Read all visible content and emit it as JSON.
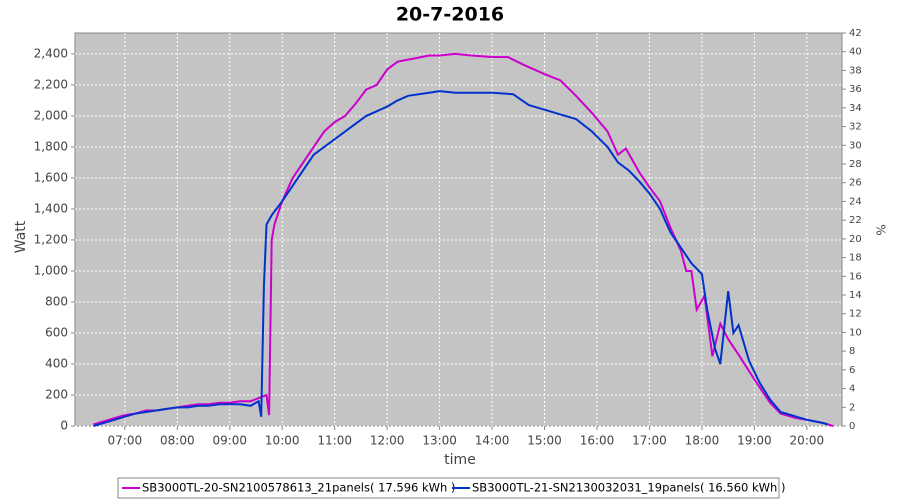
{
  "chart_data": {
    "type": "line",
    "title": "20-7-2016",
    "xlabel": "time",
    "ylabel": "Watt",
    "y2label": "%",
    "xlim": [
      6.05,
      20.67
    ],
    "xticks": [
      {
        "value": 7,
        "label": "07:00"
      },
      {
        "value": 8,
        "label": "08:00"
      },
      {
        "value": 9,
        "label": "09:00"
      },
      {
        "value": 10,
        "label": "10:00"
      },
      {
        "value": 11,
        "label": "11:00"
      },
      {
        "value": 12,
        "label": "12:00"
      },
      {
        "value": 13,
        "label": "13:00"
      },
      {
        "value": 14,
        "label": "14:00"
      },
      {
        "value": 15,
        "label": "15:00"
      },
      {
        "value": 16,
        "label": "16:00"
      },
      {
        "value": 17,
        "label": "17:00"
      },
      {
        "value": 18,
        "label": "18:00"
      },
      {
        "value": 19,
        "label": "19:00"
      },
      {
        "value": 20,
        "label": "20:00"
      }
    ],
    "ylim": [
      0,
      2535
    ],
    "yticks": [
      0,
      200,
      400,
      600,
      800,
      {
        "value": 1000,
        "label": "1,000"
      },
      {
        "value": 1200,
        "label": "1,200"
      },
      {
        "value": 1400,
        "label": "1,400"
      },
      {
        "value": 1600,
        "label": "1,600"
      },
      {
        "value": 1800,
        "label": "1,800"
      },
      {
        "value": 2000,
        "label": "2,000"
      },
      {
        "value": 2200,
        "label": "2,200"
      },
      {
        "value": 2400,
        "label": "2,400"
      }
    ],
    "y2lim": [
      0,
      42
    ],
    "y2ticks": [
      0,
      2,
      4,
      6,
      8,
      10,
      12,
      14,
      16,
      18,
      20,
      22,
      24,
      26,
      28,
      30,
      32,
      34,
      36,
      38,
      40,
      42
    ],
    "grid": true,
    "series": [
      {
        "name": "SB3000TL-20-SN2100578613_21panels( 17.596 kWh )",
        "color": "#cc00cc",
        "x": [
          6.4,
          6.6,
          6.8,
          7.0,
          7.2,
          7.4,
          7.6,
          7.8,
          8.0,
          8.2,
          8.4,
          8.6,
          8.8,
          9.0,
          9.2,
          9.4,
          9.55,
          9.7,
          9.75,
          9.8,
          9.85,
          10.0,
          10.2,
          10.4,
          10.6,
          10.8,
          11.0,
          11.2,
          11.4,
          11.6,
          11.8,
          12.0,
          12.2,
          12.5,
          12.8,
          13.0,
          13.3,
          13.6,
          14.0,
          14.3,
          14.6,
          15.0,
          15.3,
          15.6,
          15.9,
          16.2,
          16.4,
          16.55,
          16.8,
          17.0,
          17.2,
          17.4,
          17.6,
          17.7,
          17.8,
          17.9,
          18.05,
          18.2,
          18.35,
          18.5,
          18.7,
          19.0,
          19.3,
          19.5,
          19.8,
          20.0,
          20.3,
          20.5
        ],
        "values": [
          10,
          30,
          50,
          70,
          80,
          100,
          100,
          110,
          120,
          130,
          140,
          140,
          150,
          150,
          160,
          160,
          180,
          200,
          70,
          1200,
          1300,
          1450,
          1600,
          1700,
          1800,
          1900,
          1960,
          2000,
          2080,
          2170,
          2200,
          2300,
          2350,
          2370,
          2390,
          2390,
          2400,
          2390,
          2380,
          2380,
          2330,
          2270,
          2230,
          2130,
          2020,
          1900,
          1750,
          1790,
          1640,
          1540,
          1450,
          1280,
          1130,
          1000,
          1000,
          750,
          840,
          450,
          660,
          560,
          460,
          300,
          150,
          80,
          50,
          40,
          20,
          0
        ]
      },
      {
        "name": "SB3000TL-21-SN2130032031_19panels( 16.560 kWh )",
        "color": "#0033cc",
        "x": [
          6.4,
          6.6,
          6.8,
          7.0,
          7.2,
          7.4,
          7.6,
          7.8,
          8.0,
          8.2,
          8.4,
          8.6,
          8.8,
          9.0,
          9.2,
          9.4,
          9.55,
          9.6,
          9.65,
          9.7,
          9.8,
          10.0,
          10.2,
          10.4,
          10.6,
          10.8,
          11.0,
          11.2,
          11.4,
          11.6,
          11.8,
          12.0,
          12.2,
          12.4,
          12.8,
          13.0,
          13.3,
          13.6,
          14.0,
          14.4,
          14.7,
          15.0,
          15.3,
          15.6,
          15.9,
          16.2,
          16.4,
          16.6,
          16.8,
          17.0,
          17.2,
          17.4,
          17.6,
          17.8,
          18.0,
          18.1,
          18.25,
          18.35,
          18.5,
          18.6,
          18.7,
          18.9,
          19.1,
          19.3,
          19.5,
          19.7,
          20.0,
          20.3,
          20.4
        ],
        "values": [
          0,
          20,
          40,
          60,
          80,
          90,
          100,
          110,
          120,
          120,
          130,
          130,
          140,
          140,
          140,
          130,
          160,
          60,
          900,
          1300,
          1360,
          1450,
          1550,
          1650,
          1750,
          1800,
          1850,
          1900,
          1950,
          2000,
          2030,
          2060,
          2100,
          2130,
          2150,
          2160,
          2150,
          2150,
          2150,
          2140,
          2070,
          2040,
          2010,
          1980,
          1900,
          1800,
          1700,
          1650,
          1580,
          1500,
          1400,
          1250,
          1150,
          1050,
          980,
          750,
          500,
          400,
          870,
          600,
          650,
          420,
          280,
          170,
          90,
          70,
          40,
          20,
          10
        ]
      }
    ]
  }
}
